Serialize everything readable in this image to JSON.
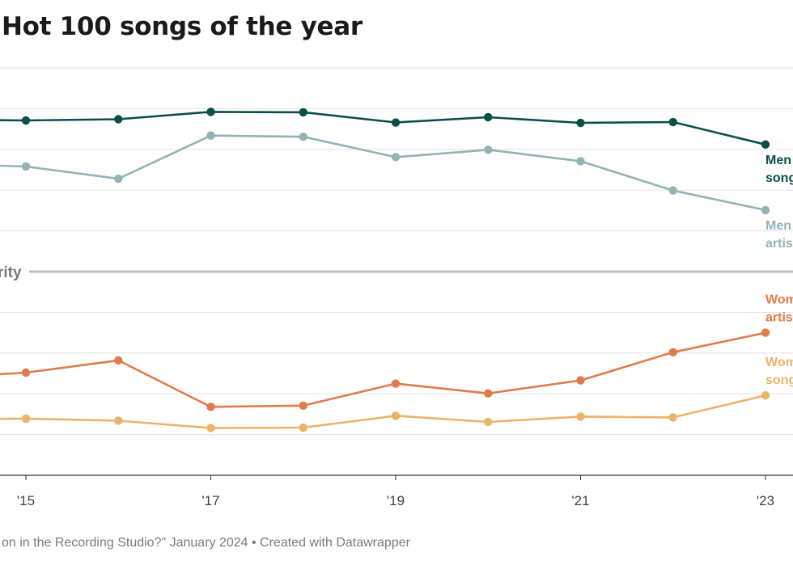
{
  "chart_data": {
    "type": "line",
    "title": "Hot 100 songs of the year",
    "x": [
      "2014",
      "2015",
      "2016",
      "2017",
      "2018",
      "2019",
      "2020",
      "2021",
      "2022",
      "2023"
    ],
    "x_tick_labels": [
      {
        "x": "2015",
        "label": "'15"
      },
      {
        "x": "2017",
        "label": "'17"
      },
      {
        "x": "2019",
        "label": "'19"
      },
      {
        "x": "2021",
        "label": "'21"
      },
      {
        "x": "2023",
        "label": "'23"
      }
    ],
    "ylim": [
      0,
      100
    ],
    "grid": true,
    "reference_line": {
      "value": 50,
      "label": "rity"
    },
    "series": [
      {
        "name": "Men songwriters",
        "label_lines": [
          "Men",
          "song"
        ],
        "color": "#0b5048",
        "values": [
          87.3,
          87.1,
          87.4,
          89.2,
          89.1,
          86.6,
          87.9,
          86.5,
          86.7,
          81.2
        ]
      },
      {
        "name": "Men artists",
        "label_lines": [
          "Men",
          "artis"
        ],
        "color": "#94b4b3",
        "values": [
          76.5,
          75.8,
          72.8,
          83.4,
          83.1,
          78.1,
          79.9,
          77.1,
          69.9,
          65.1
        ]
      },
      {
        "name": "Women artists",
        "label_lines": [
          "Wom",
          "artis"
        ],
        "color": "#e07b4d",
        "values": [
          23.8,
          25.2,
          28.2,
          16.8,
          17.1,
          22.5,
          20.1,
          23.3,
          30.2,
          35.0
        ]
      },
      {
        "name": "Women songwriters",
        "label_lines": [
          "Wom",
          "song"
        ],
        "color": "#ebb469",
        "values": [
          13.7,
          13.9,
          13.4,
          11.6,
          11.7,
          14.6,
          13.1,
          14.4,
          14.2,
          19.6
        ]
      }
    ]
  },
  "footer": {
    "text": "on in the Recording Studio?\" January 2024 • Created with Datawrapper"
  }
}
